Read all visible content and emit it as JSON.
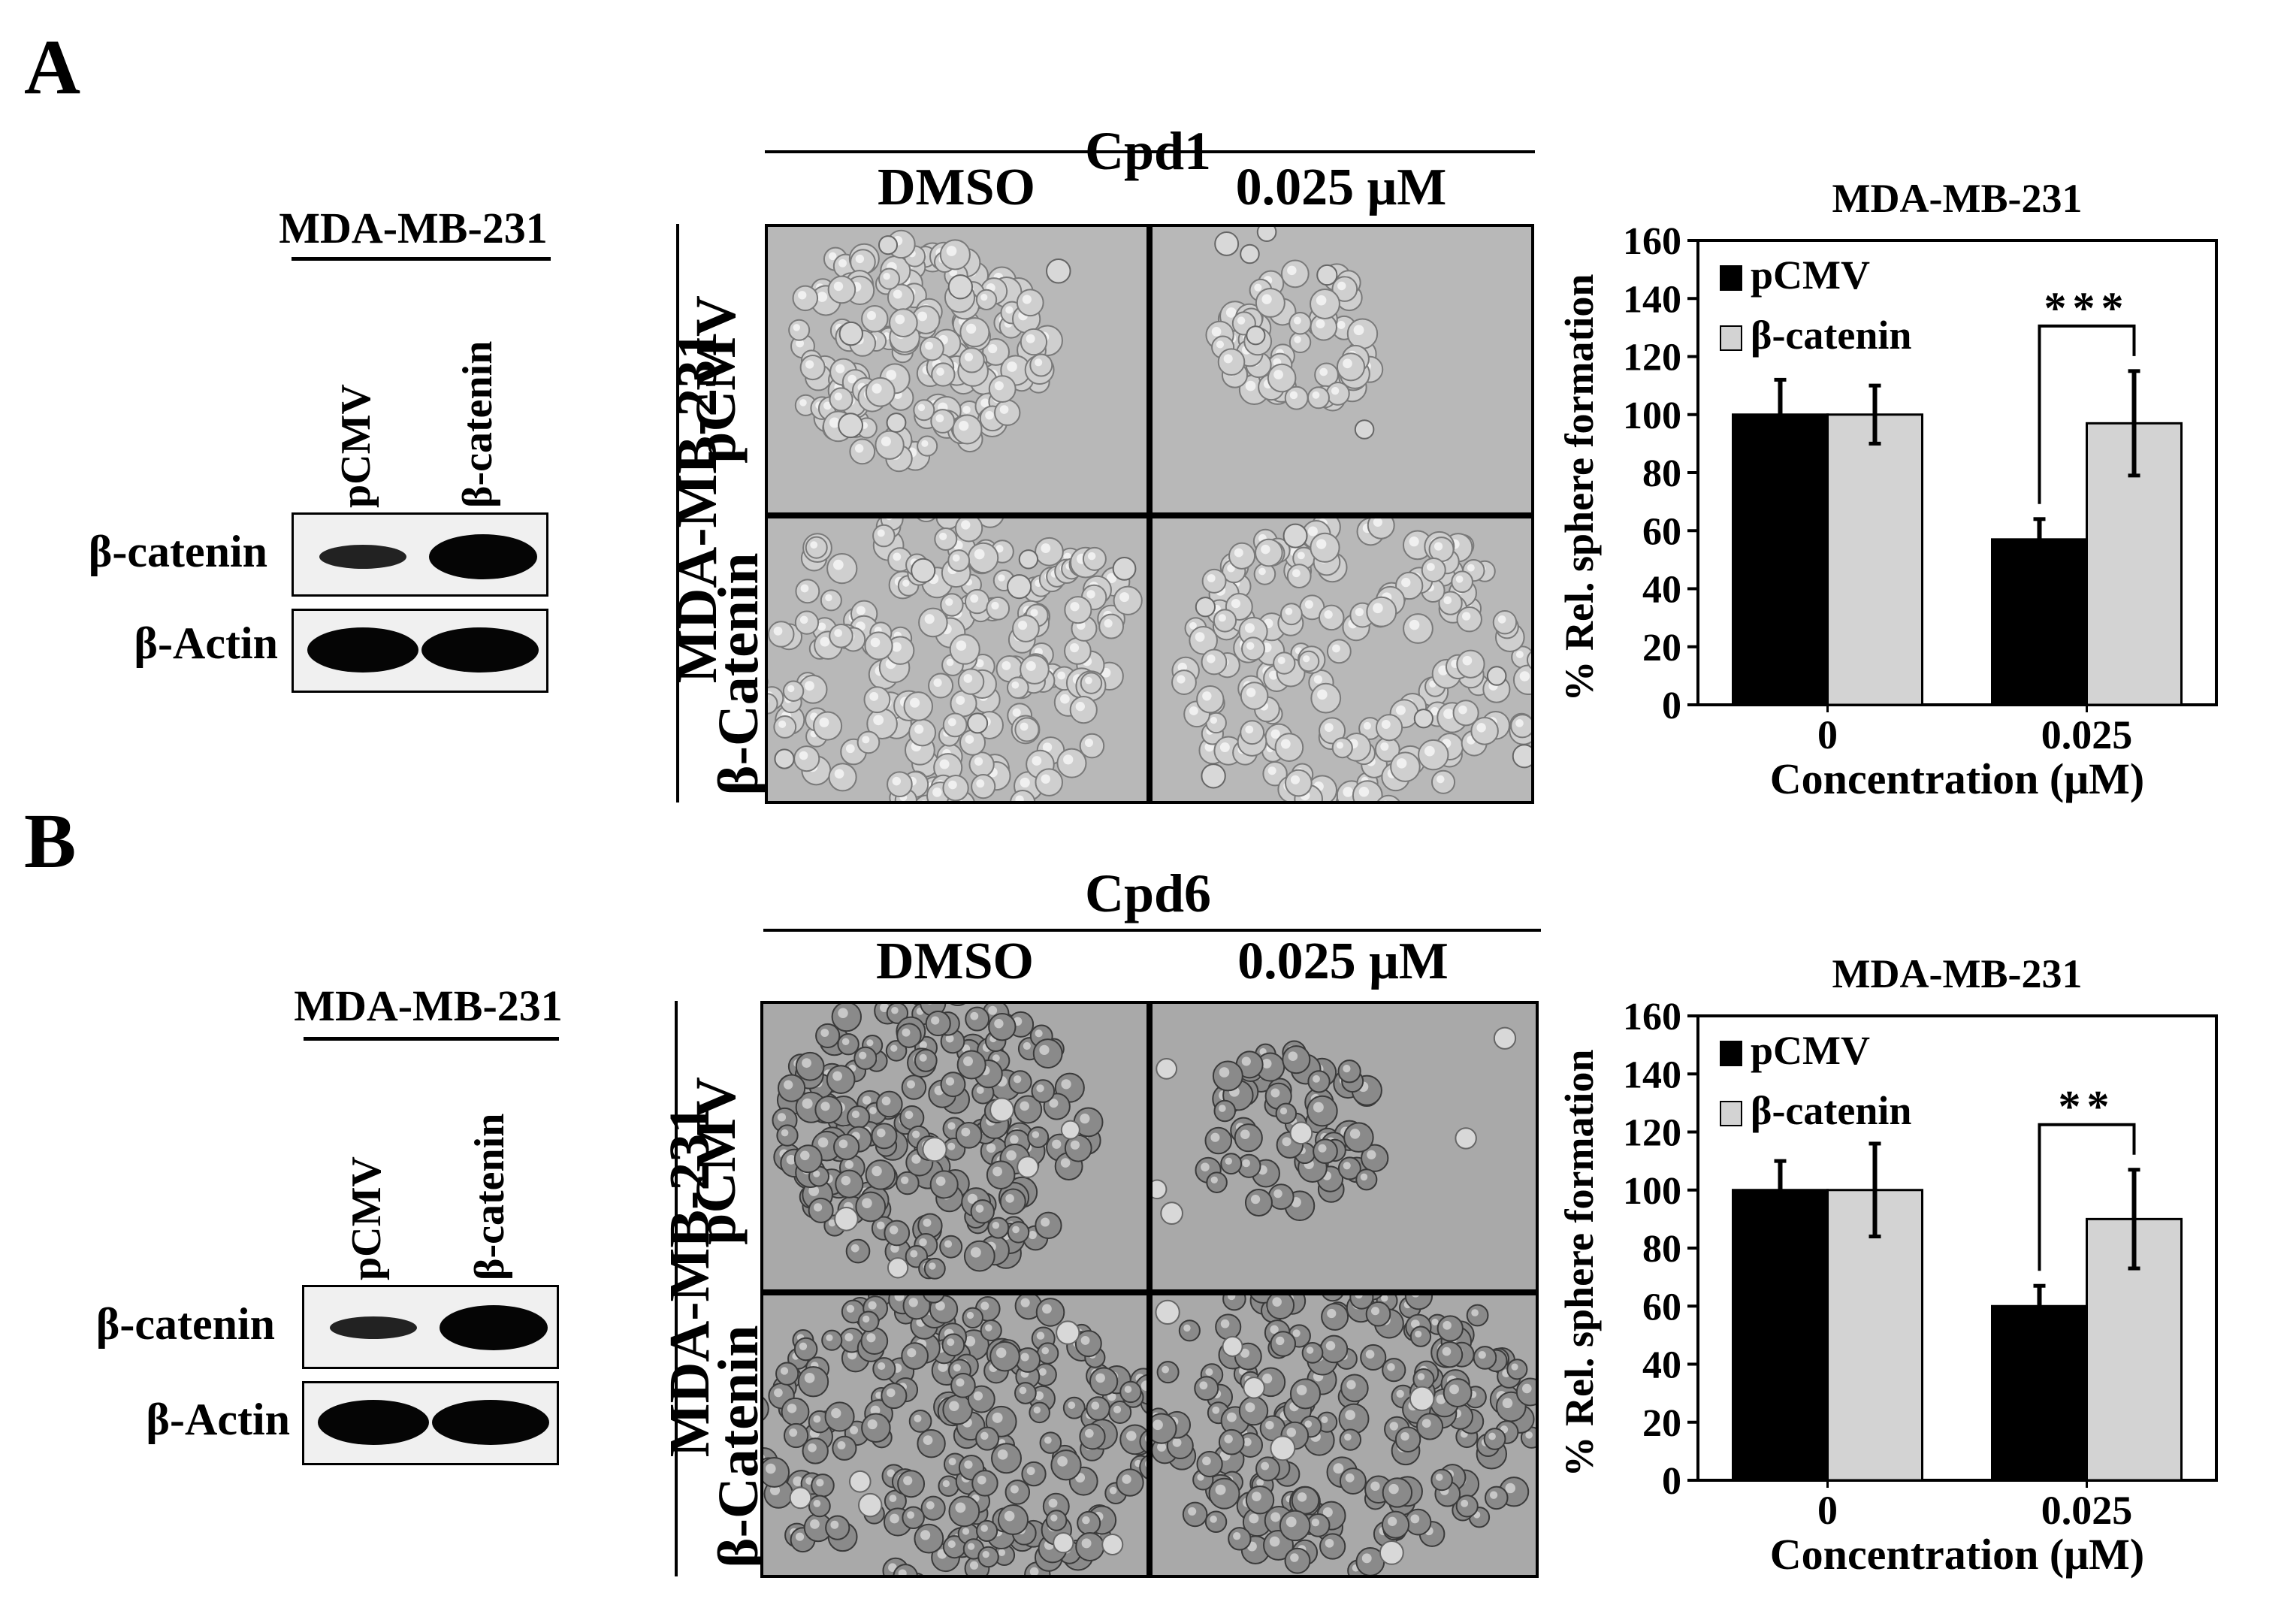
{
  "panels": [
    {
      "letter": "A",
      "western": {
        "cell_line": "MDA-MB-231",
        "lanes": [
          "pCMV",
          "β-catenin"
        ],
        "rows": [
          "β-catenin",
          "β-Actin"
        ]
      },
      "micrographs": {
        "compound": "Cpd1",
        "conditions": [
          "DMSO",
          "0.025 μM"
        ],
        "cell_line": "MDA-MB-231",
        "rows": [
          "pCMV",
          "β-Catenin"
        ]
      }
    },
    {
      "letter": "B",
      "western": {
        "cell_line": "MDA-MB-231",
        "lanes": [
          "pCMV",
          "β-catenin"
        ],
        "rows": [
          "β-catenin",
          "β-Actin"
        ]
      },
      "micrographs": {
        "compound": "Cpd6",
        "conditions": [
          "DMSO",
          "0.025 μM"
        ],
        "cell_line": "MDA-MB-231",
        "rows": [
          "pCMV",
          "β-Catenin"
        ]
      }
    }
  ],
  "chart_data": [
    {
      "type": "bar",
      "title": "MDA-MB-231",
      "xlabel": "Concentration (μM)",
      "ylabel": "% Rel. sphere formation",
      "categories": [
        "0",
        "0.025"
      ],
      "ylim": [
        0,
        160
      ],
      "yticks": [
        "0",
        "20",
        "40",
        "60",
        "80",
        "100",
        "120",
        "140",
        "160"
      ],
      "series": [
        {
          "name": "pCMV",
          "values": [
            100,
            57
          ],
          "errors": [
            12,
            7
          ],
          "color": "#000000"
        },
        {
          "name": "β-catenin",
          "values": [
            100,
            97
          ],
          "errors": [
            10,
            18
          ],
          "color": "#d3d3d3"
        }
      ],
      "annotation": {
        "text": "***",
        "category_index": 1
      },
      "legend": "top-left"
    },
    {
      "type": "bar",
      "title": "MDA-MB-231",
      "xlabel": "Concentration (μM)",
      "ylabel": "% Rel. sphere formation",
      "categories": [
        "0",
        "0.025"
      ],
      "ylim": [
        0,
        160
      ],
      "yticks": [
        "0",
        "20",
        "40",
        "60",
        "80",
        "100",
        "120",
        "140",
        "160"
      ],
      "series": [
        {
          "name": "pCMV",
          "values": [
            100,
            60
          ],
          "errors": [
            10,
            7
          ],
          "color": "#000000"
        },
        {
          "name": "β-catenin",
          "values": [
            100,
            90
          ],
          "errors": [
            16,
            17
          ],
          "color": "#d3d3d3"
        }
      ],
      "annotation": {
        "text": "**",
        "category_index": 1
      },
      "legend": "top-left"
    }
  ]
}
